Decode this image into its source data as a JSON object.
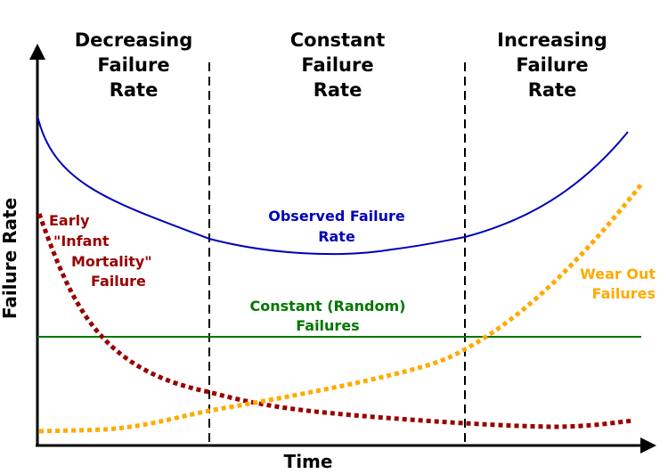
{
  "regions": {
    "decreasing": [
      "Decreasing",
      "Failure",
      "Rate"
    ],
    "constant": [
      "Constant",
      "Failure",
      "Rate"
    ],
    "increasing": [
      "Increasing",
      "Failure",
      "Rate"
    ]
  },
  "axes": {
    "y_label": "Failure Rate",
    "x_label": "Time"
  },
  "curves": {
    "observed": {
      "lines": [
        "Observed Failure",
        "Rate"
      ],
      "color": "#0000bb",
      "style": "solid"
    },
    "early": {
      "lines": [
        "Early",
        "\"Infant",
        "Mortality\"",
        "Failure"
      ],
      "color": "#990000",
      "style": "dotted"
    },
    "constant": {
      "lines": [
        "Constant (Random)",
        "Failures"
      ],
      "color": "#007700",
      "style": "solid"
    },
    "wear_out": {
      "lines": [
        "Wear Out",
        "Failures"
      ],
      "color": "#ffaa00",
      "style": "dotted"
    }
  },
  "chart_data": {
    "type": "line",
    "title": "",
    "xlabel": "Time",
    "ylabel": "Failure Rate",
    "grid": false,
    "region_boundaries": "two vertical dashed lines",
    "series": [
      {
        "name": "Observed Failure Rate",
        "shape": "bathtub (high, falls to flat minimum, rises sharply)"
      },
      {
        "name": "Early \"Infant Mortality\" Failure",
        "shape": "decreasing"
      },
      {
        "name": "Constant (Random) Failures",
        "shape": "constant"
      },
      {
        "name": "Wear Out Failures",
        "shape": "increasing"
      }
    ]
  }
}
